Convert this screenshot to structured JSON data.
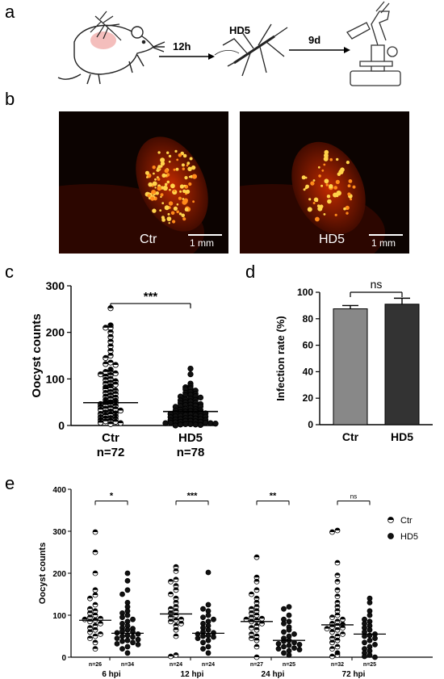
{
  "panels": {
    "a": "a",
    "b": "b",
    "c": "c",
    "d": "d",
    "e": "e"
  },
  "schematic": {
    "step1": "12h",
    "agent": "HD5",
    "step2": "9d"
  },
  "micrographs": [
    {
      "label": "Ctr",
      "scale": "1 mm"
    },
    {
      "label": "HD5",
      "scale": "1 mm"
    }
  ],
  "colors": {
    "ctr_bar": "#888888",
    "hd5_bar": "#333333",
    "midgut_red": "#b32000",
    "oocyst_yellow": "#ffd24a"
  },
  "chart_data": [
    {
      "type": "scatter",
      "panel": "c",
      "ylabel": "Oocyst counts",
      "ylim": [
        0,
        300
      ],
      "yticks": [
        0,
        100,
        200,
        300
      ],
      "significance": "***",
      "categories": [
        {
          "name": "Ctr",
          "n_label": "n=72",
          "median": 49,
          "values": [
            252,
            215,
            210,
            210,
            200,
            190,
            180,
            170,
            160,
            150,
            145,
            135,
            132,
            130,
            120,
            115,
            115,
            112,
            110,
            108,
            105,
            100,
            98,
            95,
            92,
            90,
            88,
            85,
            82,
            80,
            78,
            75,
            72,
            70,
            68,
            65,
            62,
            60,
            58,
            55,
            53,
            50,
            50,
            48,
            46,
            45,
            44,
            42,
            40,
            38,
            36,
            35,
            34,
            32,
            30,
            28,
            26,
            25,
            24,
            22,
            20,
            18,
            16,
            15,
            14,
            12,
            10,
            9,
            8,
            6,
            5,
            3
          ]
        },
        {
          "name": "HD5",
          "n_label": "n=78",
          "median": 30,
          "values": [
            122,
            110,
            90,
            85,
            82,
            80,
            78,
            75,
            72,
            70,
            68,
            66,
            65,
            63,
            62,
            60,
            58,
            56,
            55,
            54,
            52,
            50,
            49,
            48,
            46,
            45,
            44,
            43,
            42,
            41,
            40,
            38,
            36,
            35,
            34,
            33,
            32,
            31,
            30,
            30,
            29,
            28,
            27,
            26,
            25,
            24,
            23,
            22,
            21,
            20,
            20,
            19,
            18,
            17,
            16,
            15,
            14,
            14,
            13,
            12,
            11,
            10,
            10,
            9,
            8,
            8,
            7,
            6,
            6,
            5,
            5,
            4,
            3,
            3,
            2,
            2,
            1,
            0
          ]
        }
      ]
    },
    {
      "type": "bar",
      "panel": "d",
      "ylabel": "Infection rate (%)",
      "ylim": [
        0,
        100
      ],
      "yticks": [
        0,
        20,
        40,
        60,
        80,
        100
      ],
      "categories": [
        "Ctr",
        "HD5"
      ],
      "values": [
        87.5,
        91
      ],
      "errors": [
        2.5,
        4.5
      ],
      "significance": "ns"
    },
    {
      "type": "scatter",
      "panel": "e",
      "ylabel": "Oocyst counts",
      "ylim": [
        0,
        400
      ],
      "yticks": [
        0,
        100,
        200,
        300,
        400
      ],
      "legend": [
        "Ctr",
        "HD5"
      ],
      "legend_position": "top-right",
      "groups": [
        {
          "label": "6 hpi",
          "significance": "*",
          "ctr": {
            "n_label": "n=26",
            "median": 88,
            "values": [
              298,
              250,
              200,
              160,
              148,
              140,
              125,
              115,
              110,
              105,
              100,
              95,
              92,
              90,
              88,
              85,
              80,
              75,
              70,
              65,
              60,
              55,
              50,
              45,
              35,
              20
            ]
          },
          "hd5": {
            "n_label": "n=34",
            "median": 57,
            "values": [
              200,
              182,
              160,
              150,
              130,
              120,
              110,
              105,
              100,
              95,
              90,
              85,
              80,
              75,
              70,
              68,
              65,
              62,
              60,
              58,
              55,
              52,
              50,
              48,
              45,
              42,
              40,
              38,
              35,
              32,
              30,
              25,
              20,
              10
            ]
          }
        },
        {
          "label": "12 hpi",
          "significance": "***",
          "ctr": {
            "n_label": "n=24",
            "median": 103,
            "values": [
              215,
              205,
              185,
              180,
              170,
              160,
              150,
              140,
              130,
              120,
              115,
              110,
              105,
              100,
              95,
              90,
              88,
              85,
              80,
              75,
              65,
              50,
              5,
              2
            ]
          },
          "hd5": {
            "n_label": "n=24",
            "median": 57,
            "values": [
              202,
              125,
              115,
              110,
              100,
              95,
              90,
              85,
              80,
              75,
              70,
              65,
              60,
              58,
              55,
              52,
              50,
              48,
              45,
              40,
              35,
              25,
              20,
              10
            ]
          }
        },
        {
          "label": "24 hpi",
          "significance": "**",
          "ctr": {
            "n_label": "n=27",
            "median": 85,
            "values": [
              238,
              190,
              180,
              160,
              150,
              140,
              130,
              120,
              115,
              110,
              105,
              100,
              95,
              92,
              90,
              88,
              85,
              80,
              75,
              70,
              65,
              55,
              50,
              45,
              40,
              25,
              0
            ]
          },
          "hd5": {
            "n_label": "n=25",
            "median": 40,
            "values": [
              120,
              115,
              100,
              90,
              85,
              80,
              72,
              65,
              60,
              55,
              50,
              45,
              40,
              38,
              35,
              32,
              30,
              28,
              25,
              22,
              20,
              18,
              15,
              10,
              5
            ]
          }
        },
        {
          "label": "72 hpi",
          "significance": "ns",
          "ctr": {
            "n_label": "n=32",
            "median": 77,
            "values": [
              302,
              298,
              225,
              195,
              180,
              160,
              145,
              130,
              120,
              110,
              100,
              95,
              90,
              85,
              80,
              78,
              75,
              72,
              70,
              68,
              65,
              60,
              55,
              50,
              45,
              40,
              35,
              25,
              20,
              10,
              5,
              2
            ]
          },
          "hd5": {
            "n_label": "n=25",
            "median": 55,
            "values": [
              140,
              130,
              110,
              100,
              90,
              85,
              80,
              75,
              70,
              65,
              60,
              55,
              52,
              50,
              45,
              40,
              35,
              30,
              25,
              20,
              15,
              10,
              5,
              2,
              0
            ]
          }
        }
      ]
    }
  ]
}
